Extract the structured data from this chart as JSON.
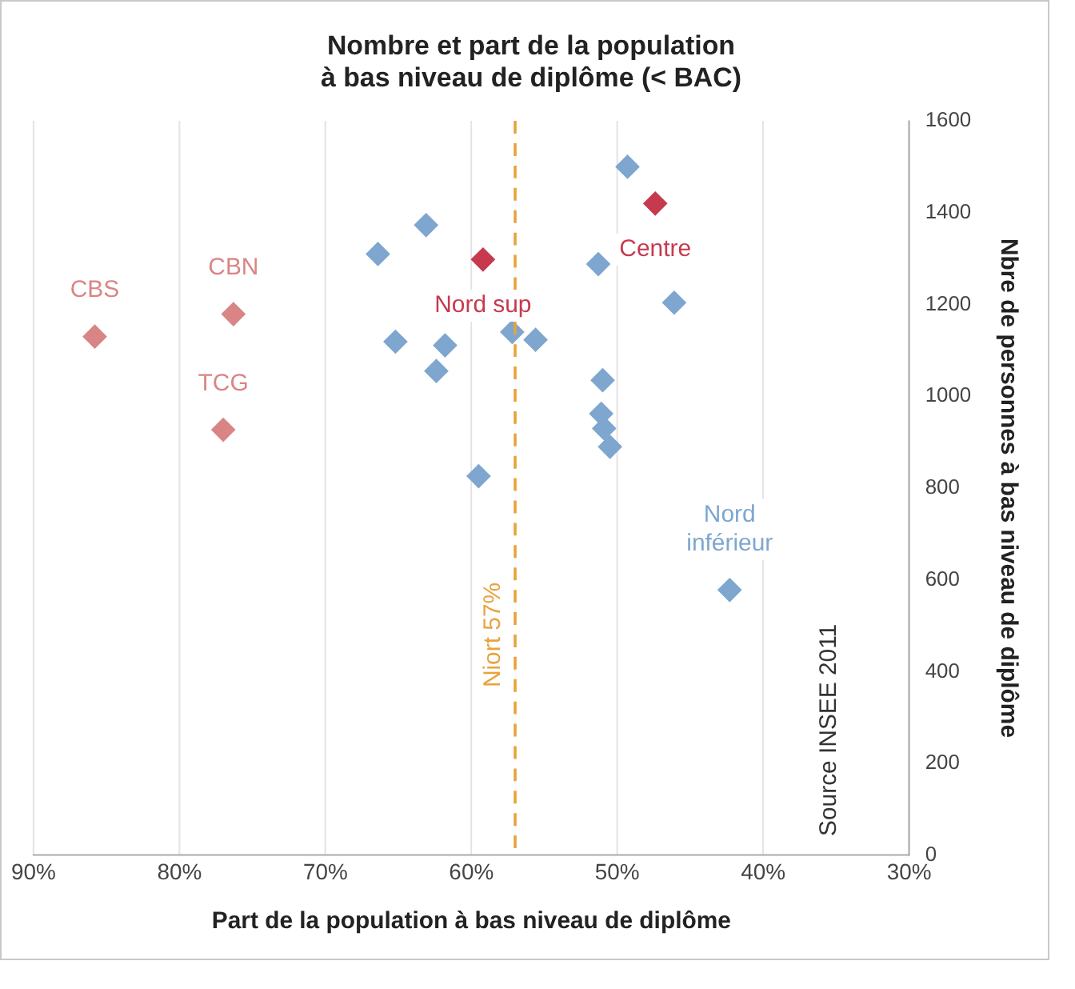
{
  "chart_data": {
    "type": "scatter",
    "title": "Nombre et part de la population\nà bas niveau de diplôme (< BAC)",
    "xlabel": "Part de la population à bas niveau de diplôme",
    "ylabel": "Nbre de personnes à bas niveau de diplôme",
    "series": [
      {
        "color": "#7ea6cf",
        "x": [
          66.4,
          63.1,
          65.2,
          61.8,
          62.4,
          59.5,
          57.2,
          55.6,
          51.3,
          49.3,
          46.1,
          51.0,
          51.1,
          50.9,
          50.5,
          42.3
        ],
        "values": [
          1310,
          1373,
          1119,
          1111,
          1055,
          826,
          1140,
          1123,
          1288,
          1500,
          1204,
          1035,
          962,
          930,
          890,
          578
        ]
      },
      {
        "color": "#d98585",
        "x": [
          85.8,
          76.3,
          77.0
        ],
        "values": [
          1130,
          1179,
          927
        ]
      },
      {
        "color": "#c63a4e",
        "x": [
          59.2,
          47.4
        ],
        "values": [
          1298,
          1420
        ]
      }
    ],
    "xlim": [
      90,
      30
    ],
    "xticks": [
      {
        "value": 90,
        "label": "90%"
      },
      {
        "value": 80,
        "label": "80%"
      },
      {
        "value": 70,
        "label": "70%"
      },
      {
        "value": 60,
        "label": "60%"
      },
      {
        "value": 50,
        "label": "50%"
      },
      {
        "value": 40,
        "label": "40%"
      },
      {
        "value": 30,
        "label": "30%"
      }
    ],
    "ylim": [
      0,
      1600
    ],
    "yticks": [
      0,
      200,
      400,
      600,
      800,
      1000,
      1200,
      1400,
      1600
    ],
    "ref_lines": [
      {
        "axis": "x",
        "value": 57,
        "label": "Niort 57%",
        "color": "#e8a33c",
        "line_style": "dashed"
      }
    ],
    "annotations": [
      {
        "text": "CBS",
        "x": 85.8,
        "y": 1130
      },
      {
        "text": "CBN",
        "x": 76.3,
        "y": 1179
      },
      {
        "text": "TCG",
        "x": 77.0,
        "y": 927
      },
      {
        "text": "Nord sup",
        "x": 59.2,
        "y": 1298
      },
      {
        "text": "Centre",
        "x": 47.4,
        "y": 1420
      },
      {
        "text": "Nord inférieur",
        "x": 42.3,
        "y": 578
      },
      "Source INSEE 2011"
    ],
    "grid": "x",
    "legend": false,
    "marker": "diamond"
  }
}
